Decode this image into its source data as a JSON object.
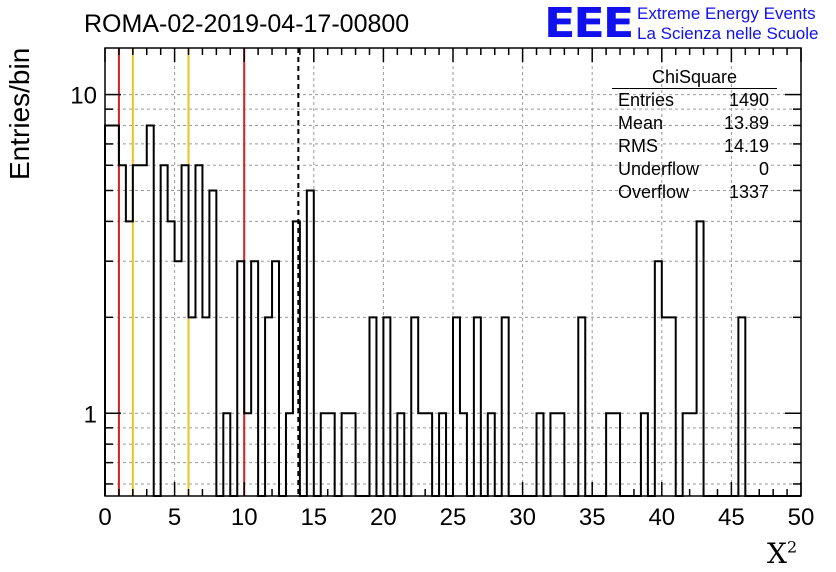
{
  "title": "ROMA-02-2019-04-17-00800",
  "logo": {
    "mark": "EEE",
    "line1": "Extreme Energy Events",
    "line2": "La Scienza nelle Scuole"
  },
  "stats": {
    "title": "ChiSquare",
    "rows": [
      {
        "label": "Entries",
        "value": "1490"
      },
      {
        "label": "Mean",
        "value": "13.89"
      },
      {
        "label": "RMS",
        "value": "14.19"
      },
      {
        "label": "Underflow",
        "value": "0"
      },
      {
        "label": "Overflow",
        "value": "1337"
      }
    ]
  },
  "chart_data": {
    "type": "histogram",
    "xlabel": "X",
    "xlabel_sup": "2",
    "ylabel": "Entries/bin",
    "xlim": [
      0,
      50
    ],
    "ylim": [
      0.55,
      14
    ],
    "log_y": true,
    "grid": true,
    "bin_width": 0.5,
    "x_ticks": [
      0,
      5,
      10,
      15,
      20,
      25,
      30,
      35,
      40,
      45,
      50
    ],
    "y_tick_labels": [
      1,
      10
    ],
    "bin_values": [
      8,
      8,
      6,
      4,
      6,
      6,
      8,
      0,
      6,
      4,
      3,
      6,
      2,
      6,
      2,
      5,
      0,
      1,
      0,
      3,
      1,
      3,
      0,
      2,
      3,
      0,
      1,
      4,
      0,
      5,
      0,
      1,
      1,
      0,
      1,
      1,
      0,
      0,
      2,
      0,
      2,
      0,
      1,
      0,
      2,
      1,
      1,
      0,
      1,
      0,
      2,
      1,
      0,
      2,
      0,
      1,
      0,
      2,
      0,
      0,
      0,
      0,
      1,
      0,
      1,
      1,
      0,
      0,
      2,
      0,
      0,
      0,
      1,
      1,
      0,
      0,
      0,
      1,
      0,
      3,
      2,
      2,
      0,
      1,
      1,
      4,
      0,
      0,
      0,
      0,
      0,
      2,
      0,
      0,
      0,
      0,
      0,
      0,
      0,
      0
    ],
    "vertical_lines": [
      {
        "x": 1,
        "color": "#d62020",
        "style": "solid"
      },
      {
        "x": 2,
        "color": "#f0c020",
        "style": "solid"
      },
      {
        "x": 6,
        "color": "#f0c020",
        "style": "solid"
      },
      {
        "x": 10,
        "color": "#d62020",
        "style": "solid"
      },
      {
        "x": 13.89,
        "color": "#000000",
        "style": "dashed"
      }
    ]
  }
}
